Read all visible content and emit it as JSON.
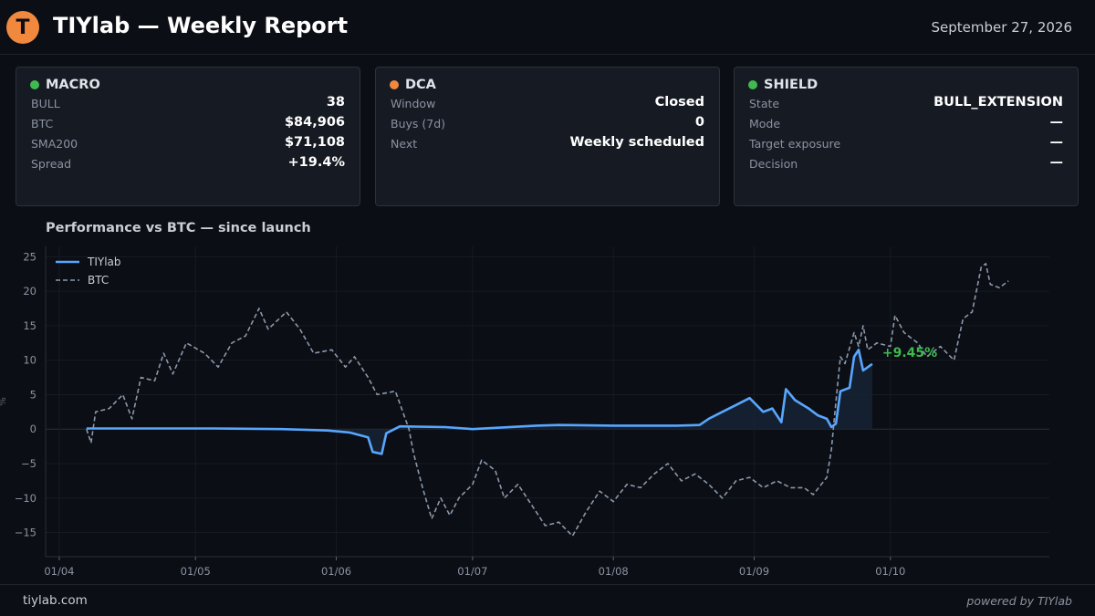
{
  "header": {
    "logo_letter": "T",
    "title": "TIYlab — Weekly Report",
    "date": "September 27, 2026"
  },
  "cards": {
    "macro": {
      "title": "MACRO",
      "dot_color": "#3fb950",
      "rows": [
        {
          "label": "BULL",
          "value": "38"
        },
        {
          "label": "BTC",
          "value": "$84,906"
        },
        {
          "label": "SMA200",
          "value": "$71,108"
        },
        {
          "label": "Spread",
          "value": "+19.4%"
        }
      ]
    },
    "dca": {
      "title": "DCA",
      "dot_color": "#f0883e",
      "rows": [
        {
          "label": "Window",
          "value": "Closed"
        },
        {
          "label": "Buys (7d)",
          "value": "0"
        },
        {
          "label": "Next",
          "value": "Weekly scheduled"
        }
      ]
    },
    "shield": {
      "title": "SHIELD",
      "dot_color": "#3fb950",
      "rows": [
        {
          "label": "State",
          "value": "BULL_EXTENSION"
        },
        {
          "label": "Mode",
          "value": "—"
        },
        {
          "label": "Target exposure",
          "value": "—"
        },
        {
          "label": "Decision",
          "value": "—"
        }
      ]
    }
  },
  "chart_title": "Performance vs BTC — since launch",
  "chart_data": {
    "type": "line",
    "title": "Performance vs BTC — since launch",
    "xlabel": "",
    "ylabel": "%",
    "x_ticks": [
      "01/04",
      "01/05",
      "01/06",
      "01/07",
      "01/08",
      "01/09",
      "01/10"
    ],
    "y_ticks": [
      -15,
      -10,
      -5,
      0,
      5,
      10,
      15,
      20,
      25
    ],
    "ylim": [
      -18.5,
      26.5
    ],
    "grid": true,
    "legend_position": "top-left",
    "final_label": "+9.45%",
    "colors": {
      "tiylab": "#58a6ff",
      "btc": "#8b98ab",
      "final": "#3fb950",
      "fill": "#162334"
    },
    "series": [
      {
        "name": "TIYlab",
        "style": "solid",
        "points": [
          [
            "2026-04-07",
            0.1
          ],
          [
            "2026-04-20",
            0.1
          ],
          [
            "2026-05-05",
            0.1
          ],
          [
            "2026-05-20",
            0.0
          ],
          [
            "2026-05-30",
            -0.2
          ],
          [
            "2026-06-04",
            -0.5
          ],
          [
            "2026-06-08",
            -1.2
          ],
          [
            "2026-06-09",
            -3.3
          ],
          [
            "2026-06-11",
            -3.6
          ],
          [
            "2026-06-12",
            -0.6
          ],
          [
            "2026-06-15",
            0.4
          ],
          [
            "2026-06-25",
            0.3
          ],
          [
            "2026-07-01",
            0.0
          ],
          [
            "2026-07-15",
            0.5
          ],
          [
            "2026-07-20",
            0.6
          ],
          [
            "2026-08-01",
            0.5
          ],
          [
            "2026-08-15",
            0.5
          ],
          [
            "2026-08-20",
            0.6
          ],
          [
            "2026-08-22",
            1.5
          ],
          [
            "2026-08-25",
            2.5
          ],
          [
            "2026-08-28",
            3.5
          ],
          [
            "2026-08-31",
            4.5
          ],
          [
            "2026-09-03",
            2.5
          ],
          [
            "2026-09-05",
            3.0
          ],
          [
            "2026-09-07",
            1.0
          ],
          [
            "2026-09-08",
            5.8
          ],
          [
            "2026-09-10",
            4.2
          ],
          [
            "2026-09-13",
            3.0
          ],
          [
            "2026-09-15",
            2.0
          ],
          [
            "2026-09-17",
            1.5
          ],
          [
            "2026-09-18",
            0.3
          ],
          [
            "2026-09-19",
            0.8
          ],
          [
            "2026-09-20",
            5.5
          ],
          [
            "2026-09-22",
            6.0
          ],
          [
            "2026-09-23",
            10.5
          ],
          [
            "2026-09-24",
            11.5
          ],
          [
            "2026-09-25",
            8.5
          ],
          [
            "2026-09-27",
            9.45
          ]
        ]
      },
      {
        "name": "BTC",
        "style": "dashed",
        "points": [
          [
            "2026-04-07",
            0.0
          ],
          [
            "2026-04-08",
            -2.0
          ],
          [
            "2026-04-09",
            2.5
          ],
          [
            "2026-04-12",
            3.0
          ],
          [
            "2026-04-15",
            5.0
          ],
          [
            "2026-04-17",
            1.5
          ],
          [
            "2026-04-19",
            7.5
          ],
          [
            "2026-04-22",
            7.0
          ],
          [
            "2026-04-24",
            11.0
          ],
          [
            "2026-04-26",
            8.0
          ],
          [
            "2026-04-29",
            12.5
          ],
          [
            "2026-05-03",
            11.0
          ],
          [
            "2026-05-06",
            9.0
          ],
          [
            "2026-05-09",
            12.5
          ],
          [
            "2026-05-12",
            13.5
          ],
          [
            "2026-05-15",
            17.5
          ],
          [
            "2026-05-17",
            14.5
          ],
          [
            "2026-05-21",
            17.0
          ],
          [
            "2026-05-24",
            14.5
          ],
          [
            "2026-05-27",
            11.0
          ],
          [
            "2026-05-31",
            11.5
          ],
          [
            "2026-06-03",
            9.0
          ],
          [
            "2026-06-05",
            10.5
          ],
          [
            "2026-06-08",
            7.5
          ],
          [
            "2026-06-10",
            5.0
          ],
          [
            "2026-06-14",
            5.5
          ],
          [
            "2026-06-17",
            0.0
          ],
          [
            "2026-06-18",
            -3.5
          ],
          [
            "2026-06-20",
            -8.5
          ],
          [
            "2026-06-22",
            -13.0
          ],
          [
            "2026-06-24",
            -10.0
          ],
          [
            "2026-06-26",
            -12.5
          ],
          [
            "2026-06-28",
            -10.0
          ],
          [
            "2026-07-01",
            -8.0
          ],
          [
            "2026-07-03",
            -4.5
          ],
          [
            "2026-07-06",
            -6.0
          ],
          [
            "2026-07-08",
            -10.0
          ],
          [
            "2026-07-11",
            -8.0
          ],
          [
            "2026-07-14",
            -11.0
          ],
          [
            "2026-07-17",
            -14.0
          ],
          [
            "2026-07-20",
            -13.5
          ],
          [
            "2026-07-23",
            -15.5
          ],
          [
            "2026-07-26",
            -12.0
          ],
          [
            "2026-07-29",
            -9.0
          ],
          [
            "2026-08-01",
            -10.5
          ],
          [
            "2026-08-04",
            -8.0
          ],
          [
            "2026-08-07",
            -8.5
          ],
          [
            "2026-08-10",
            -6.5
          ],
          [
            "2026-08-13",
            -5.0
          ],
          [
            "2026-08-16",
            -7.5
          ],
          [
            "2026-08-19",
            -6.5
          ],
          [
            "2026-08-22",
            -8.0
          ],
          [
            "2026-08-25",
            -10.0
          ],
          [
            "2026-08-28",
            -7.5
          ],
          [
            "2026-08-31",
            -7.0
          ],
          [
            "2026-09-03",
            -8.5
          ],
          [
            "2026-09-06",
            -7.5
          ],
          [
            "2026-09-09",
            -8.5
          ],
          [
            "2026-09-12",
            -8.5
          ],
          [
            "2026-09-14",
            -9.5
          ],
          [
            "2026-09-17",
            -7.0
          ],
          [
            "2026-09-18",
            -3.0
          ],
          [
            "2026-09-19",
            4.0
          ],
          [
            "2026-09-20",
            10.5
          ],
          [
            "2026-09-21",
            9.5
          ],
          [
            "2026-09-23",
            14.0
          ],
          [
            "2026-09-24",
            12.0
          ],
          [
            "2026-09-25",
            15.0
          ],
          [
            "2026-09-26",
            11.5
          ],
          [
            "2026-09-28",
            12.5
          ],
          [
            "2026-10-01",
            12.0
          ],
          [
            "2026-10-02",
            16.5
          ],
          [
            "2026-10-04",
            14.0
          ],
          [
            "2026-10-07",
            12.5
          ],
          [
            "2026-10-09",
            10.5
          ],
          [
            "2026-10-12",
            12.0
          ],
          [
            "2026-10-15",
            10.0
          ],
          [
            "2026-10-17",
            16.0
          ],
          [
            "2026-10-19",
            17.0
          ],
          [
            "2026-10-21",
            23.5
          ],
          [
            "2026-10-22",
            24.0
          ],
          [
            "2026-10-23",
            21.0
          ],
          [
            "2026-10-25",
            20.5
          ],
          [
            "2026-10-27",
            21.5
          ]
        ]
      }
    ]
  },
  "footer": {
    "site": "tiylab.com",
    "powered": "powered by TIYlab"
  }
}
